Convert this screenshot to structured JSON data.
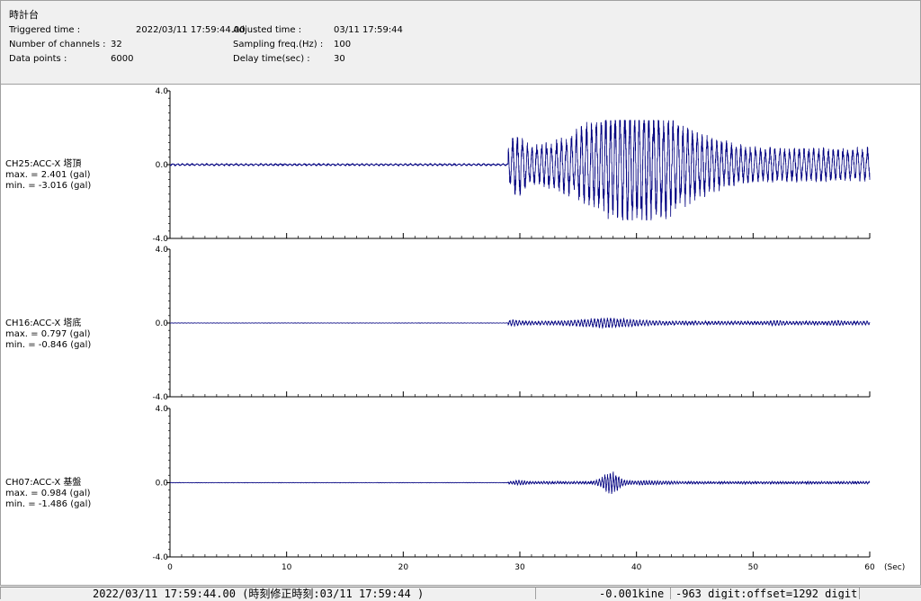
{
  "header": {
    "title": "時計台",
    "triggered_label": "Triggered time :",
    "triggered_value": "2022/03/11 17:59:44.00",
    "channels_label": "Number of channels :",
    "channels_value": "32",
    "datapoints_label": "Data points :",
    "datapoints_value": "6000",
    "adjusted_label": "Adjusted time :",
    "adjusted_value": "03/11 17:59:44",
    "sampling_label": "Sampling freq.(Hz) :",
    "sampling_value": "100",
    "delay_label": "Delay time(sec) :",
    "delay_value": "30"
  },
  "channels": [
    {
      "name": "CH25:ACC-X 塔頂",
      "max_text": "max. = 2.401 (gal)",
      "min_text": "min. = -3.016 (gal)"
    },
    {
      "name": "CH16:ACC-X 塔底",
      "max_text": "max. = 0.797 (gal)",
      "min_text": "min. = -0.846 (gal)"
    },
    {
      "name": "CH07:ACC-X 基盤",
      "max_text": "max. = 0.984 (gal)",
      "min_text": "min. = -1.486 (gal)"
    }
  ],
  "status": {
    "time": "2022/03/11 17:59:44.00  (時刻修正時刻:03/11 17:59:44  )",
    "value": "-0.001kine",
    "digit": "-963 digit:offset=1292 digit"
  },
  "colors": {
    "trace": "#000080",
    "axis": "#000000"
  },
  "chart_data": {
    "type": "line",
    "x_unit_label": "(Sec)",
    "xlim": [
      0,
      60
    ],
    "x_ticks": [
      "0",
      "10",
      "20",
      "30",
      "40",
      "50",
      "60"
    ],
    "ylim": [
      -4.0,
      4.0
    ],
    "y_ticks": [
      "4.0",
      "0.0",
      "-4.0"
    ],
    "series": [
      {
        "name": "CH25:ACC-X 塔頂",
        "max": 2.401,
        "min": -3.016,
        "onset_sec": 29.0
      },
      {
        "name": "CH16:ACC-X 塔底",
        "max": 0.797,
        "min": -0.846,
        "onset_sec": 29.0
      },
      {
        "name": "CH07:ACC-X 基盤",
        "max": 0.984,
        "min": -1.486,
        "onset_sec": 29.0
      }
    ]
  }
}
